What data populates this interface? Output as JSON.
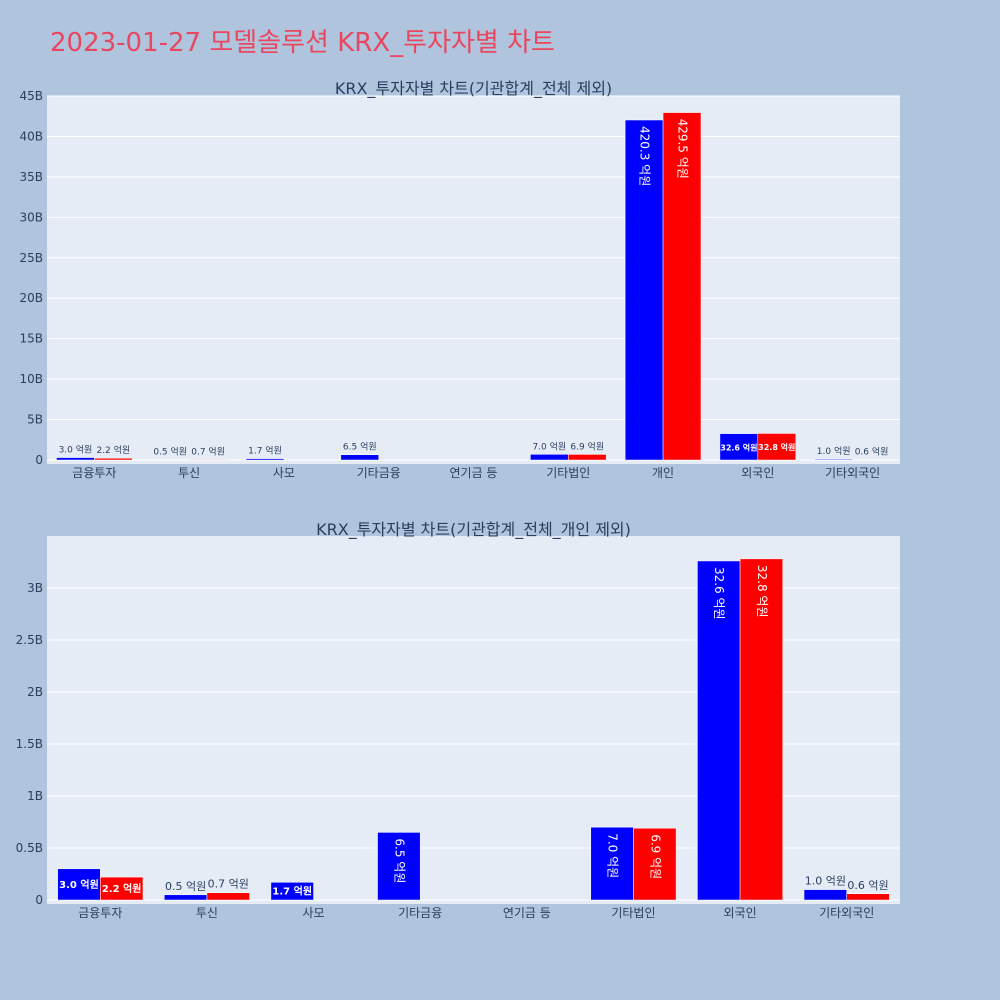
{
  "page": {
    "title": "2023-01-27 모델솔루션 KRX_투자자별 차트"
  },
  "colors": {
    "background": "#b0c4de",
    "plot_bg": "#e5ecf6",
    "title": "#e8475f",
    "buy": "#0000ff",
    "sell": "#ff0000"
  },
  "chart_data": [
    {
      "type": "bar",
      "title": "KRX_투자자별 차트(기관합계_전체 제외)",
      "categories": [
        "금융투자",
        "투신",
        "사모",
        "기타금융",
        "연기금 등",
        "기타법인",
        "개인",
        "외국인",
        "기타외국인"
      ],
      "series": [
        {
          "color": "#0000ff",
          "values": [
            300000000,
            50000000,
            170000000,
            650000000,
            0,
            700000000,
            42030000000,
            3260000000,
            100000000
          ],
          "labels": [
            "3.0 억원",
            "0.5 억원",
            "1.7 억원",
            "6.5 억원",
            "",
            "7.0 억원",
            "420.3 억원",
            "32.6 억원",
            "1.0 억원"
          ]
        },
        {
          "color": "#ff0000",
          "values": [
            220000000,
            70000000,
            0,
            0,
            0,
            690000000,
            42950000000,
            3280000000,
            60000000
          ],
          "labels": [
            "2.2 억원",
            "0.7 억원",
            "",
            "",
            "",
            "6.9 억원",
            "429.5 억원",
            "32.8 억원",
            "0.6 억원"
          ]
        }
      ],
      "ylim": [
        0,
        45000000000
      ],
      "yticks": [
        0,
        5000000000,
        10000000000,
        15000000000,
        20000000000,
        25000000000,
        30000000000,
        35000000000,
        40000000000,
        45000000000
      ],
      "ytick_labels": [
        "0",
        "5B",
        "10B",
        "15B",
        "20B",
        "25B",
        "30B",
        "35B",
        "40B",
        "45B"
      ],
      "grid": true
    },
    {
      "type": "bar",
      "title": "KRX_투자자별 차트(기관합계_전체_개인 제외)",
      "categories": [
        "금융투자",
        "투신",
        "사모",
        "기타금융",
        "연기금 등",
        "기타법인",
        "외국인",
        "기타외국인"
      ],
      "series": [
        {
          "color": "#0000ff",
          "values": [
            300000000,
            50000000,
            170000000,
            650000000,
            0,
            700000000,
            3260000000,
            100000000
          ],
          "labels": [
            "3.0 억원",
            "0.5 억원",
            "1.7 억원",
            "6.5 억원",
            "",
            "7.0 억원",
            "32.6 억원",
            "1.0 억원"
          ]
        },
        {
          "color": "#ff0000",
          "values": [
            220000000,
            70000000,
            0,
            0,
            0,
            690000000,
            3280000000,
            60000000
          ],
          "labels": [
            "2.2 억원",
            "0.7 억원",
            "",
            "",
            "",
            "6.9 억원",
            "32.8 억원",
            "0.6 억원"
          ]
        }
      ],
      "ylim": [
        0,
        3500000000
      ],
      "yticks": [
        0,
        500000000,
        1000000000,
        1500000000,
        2000000000,
        2500000000,
        3000000000
      ],
      "ytick_labels": [
        "0",
        "0.5B",
        "1B",
        "1.5B",
        "2B",
        "2.5B",
        "3B"
      ],
      "grid": true
    }
  ]
}
